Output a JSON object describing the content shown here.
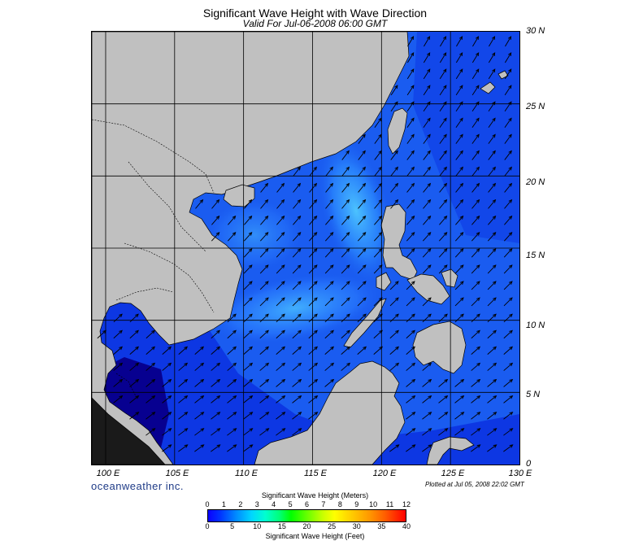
{
  "title": "Significant Wave Height with Wave Direction",
  "subtitle": "Valid For Jul-06-2008 06:00 GMT",
  "map": {
    "region": "South China Sea",
    "lon_range": [
      99,
      130
    ],
    "lat_range": [
      0,
      30
    ],
    "lat_labels": [
      "30 N",
      "25 N",
      "20 N",
      "15 N",
      "10 N",
      "5 N",
      "0"
    ],
    "lon_labels": [
      "100 E",
      "105 E",
      "110 E",
      "115 E",
      "120 E",
      "125 E",
      "130 E"
    ],
    "grid": true,
    "colors": {
      "land": "#c0c0c0",
      "sea_deep": "#0a1fd6",
      "sea_mid": "#1a5cf0",
      "sea_light": "#3fb0ff",
      "gulf_dark": "#070090",
      "arrow": "#000000",
      "grid": "#000000"
    },
    "wave_direction": "southwest monsoon, arrows pointing north-east"
  },
  "branding": {
    "name": "oceanweather inc.",
    "plotted": "Plotted at Jul 05, 2008 22:02 GMT"
  },
  "scale": {
    "title": "Significant Wave Height (Meters)",
    "top_ticks": [
      "0",
      "1",
      "2",
      "3",
      "4",
      "5",
      "6",
      "7",
      "8",
      "9",
      "10",
      "11",
      "12"
    ],
    "bottom_ticks": [
      "0",
      "5",
      "10",
      "15",
      "20",
      "25",
      "30",
      "35",
      "40"
    ],
    "bottom_title": "Significant Wave Height (Feet)"
  }
}
